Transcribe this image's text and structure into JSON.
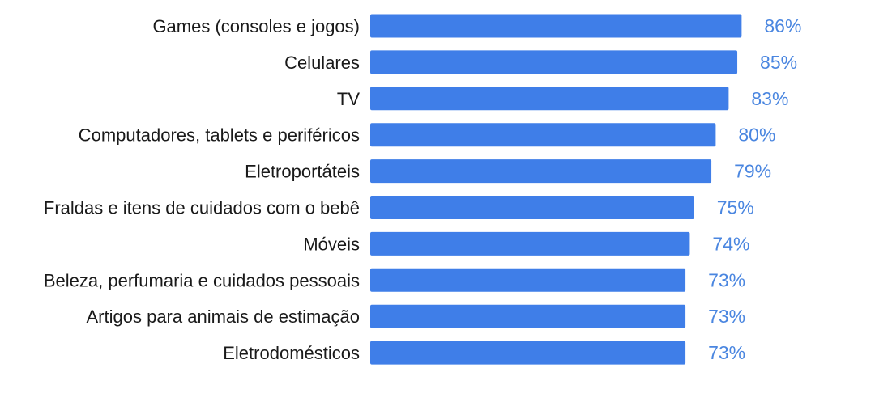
{
  "chart_data": {
    "type": "bar",
    "orientation": "horizontal",
    "title": "",
    "xlabel": "",
    "ylabel": "",
    "xlim": [
      0,
      100
    ],
    "grid": false,
    "legend": "none",
    "unit_suffix": "%",
    "categories": [
      "Games (consoles e jogos)",
      "Celulares",
      "TV",
      "Computadores, tablets e periféricos",
      "Eletroportáteis",
      "Fraldas e itens de cuidados com o bebê",
      "Móveis",
      "Beleza, perfumaria e cuidados pessoais",
      "Artigos para animais de estimação",
      "Eletrodomésticos"
    ],
    "values": [
      86,
      85,
      83,
      80,
      79,
      75,
      74,
      73,
      73,
      73
    ],
    "value_labels": [
      "86%",
      "85%",
      "83%",
      "80%",
      "79%",
      "75%",
      "74%",
      "73%",
      "73%",
      "73%"
    ],
    "colors": {
      "bar": "#3f7ee8",
      "value_label": "#4a86e0",
      "category_label": "#1a1a1a"
    }
  }
}
